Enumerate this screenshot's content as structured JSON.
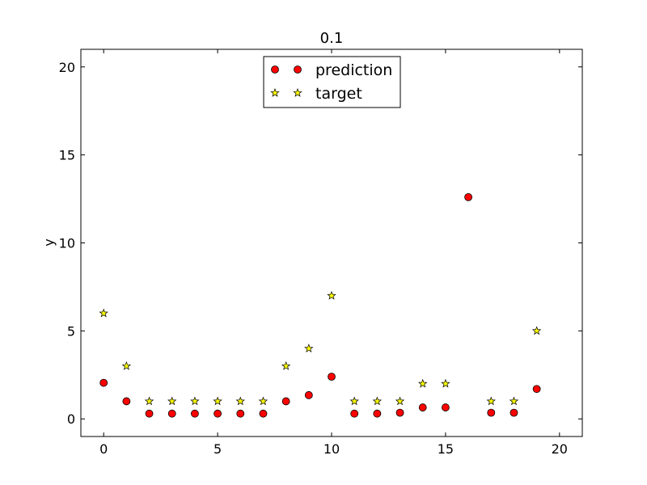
{
  "chart_data": {
    "type": "scatter",
    "title": "0.1",
    "xlabel": "",
    "ylabel": "y",
    "xlim": [
      -1,
      21
    ],
    "ylim": [
      -1,
      21
    ],
    "xticks": [
      0,
      5,
      10,
      15,
      20
    ],
    "yticks": [
      0,
      5,
      10,
      15,
      20
    ],
    "grid": false,
    "legend_position": "top-center",
    "series": [
      {
        "name": "prediction",
        "marker": "circle",
        "color": "#ff0000",
        "x": [
          0,
          1,
          2,
          3,
          4,
          5,
          6,
          7,
          8,
          9,
          10,
          11,
          12,
          13,
          14,
          15,
          16,
          17,
          18,
          19
        ],
        "y": [
          2.05,
          1.0,
          0.3,
          0.3,
          0.3,
          0.3,
          0.3,
          0.3,
          1.0,
          1.35,
          2.4,
          0.3,
          0.3,
          0.35,
          0.65,
          0.65,
          12.6,
          0.35,
          0.35,
          1.7
        ]
      },
      {
        "name": "target",
        "marker": "star",
        "color": "#ffff00",
        "x": [
          0,
          1,
          2,
          3,
          4,
          5,
          6,
          7,
          8,
          9,
          10,
          11,
          12,
          13,
          14,
          15,
          17,
          18,
          19
        ],
        "y": [
          6,
          3,
          1,
          1,
          1,
          1,
          1,
          1,
          3,
          4,
          7,
          1,
          1,
          1,
          2,
          2,
          1,
          1,
          5
        ]
      }
    ]
  }
}
